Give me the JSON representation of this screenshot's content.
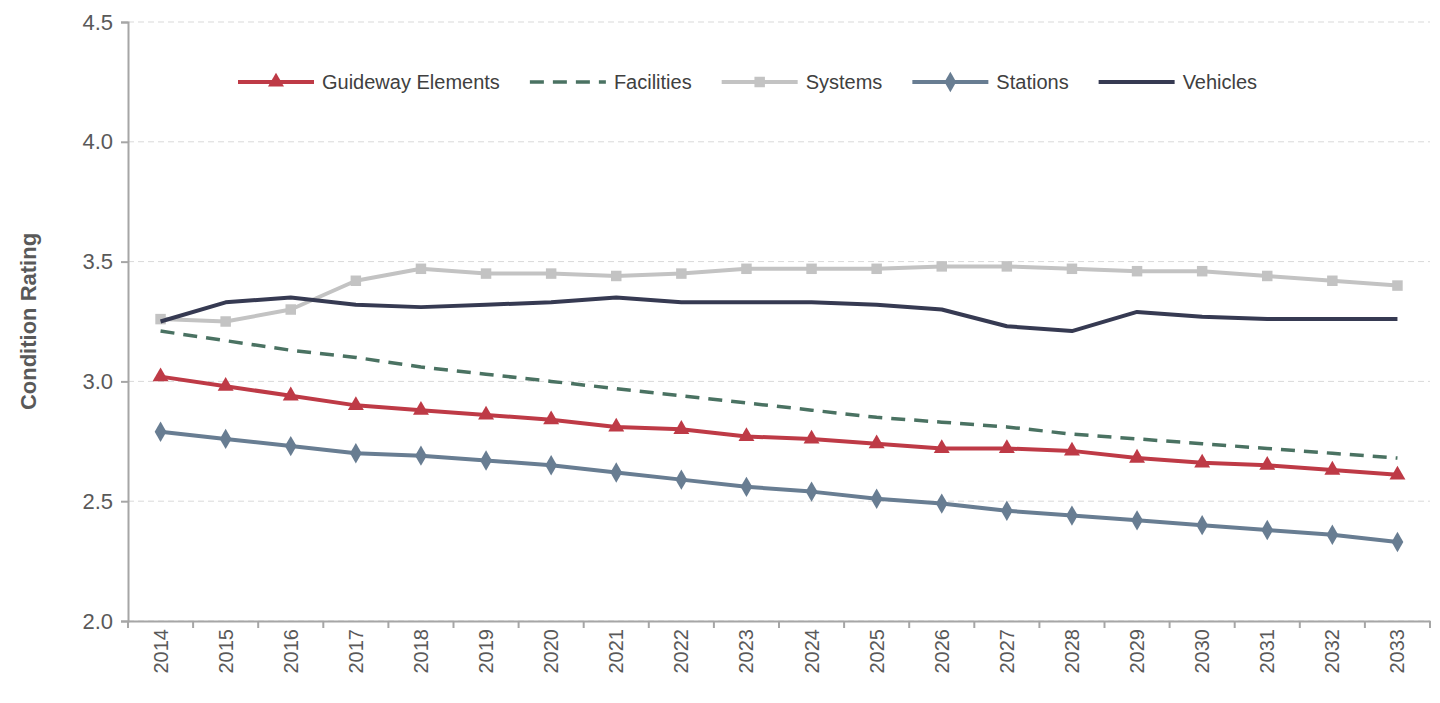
{
  "chart_data": {
    "type": "line",
    "y_label": "Condition Rating",
    "categories": [
      "2014",
      "2015",
      "2016",
      "2017",
      "2018",
      "2019",
      "2020",
      "2021",
      "2022",
      "2023",
      "2024",
      "2025",
      "2026",
      "2027",
      "2028",
      "2029",
      "2030",
      "2031",
      "2032",
      "2033"
    ],
    "ylim": [
      2.0,
      4.5
    ],
    "yticks": [
      {
        "value": 2.0,
        "label": "2.0"
      },
      2.5,
      {
        "value": 3.0,
        "label": "3.0"
      },
      3.5,
      {
        "value": 4.0,
        "label": "4.0"
      },
      4.5
    ],
    "grid": true,
    "legend": "top",
    "series": [
      {
        "name": "Guideway Elements",
        "color": "#be3a46",
        "marker": "triangle",
        "line_style": "solid",
        "values": [
          3.02,
          2.98,
          2.94,
          2.9,
          2.88,
          2.86,
          2.84,
          2.81,
          2.8,
          2.77,
          2.76,
          2.74,
          2.72,
          2.72,
          2.71,
          2.68,
          2.66,
          2.65,
          2.63,
          2.61
        ]
      },
      {
        "name": "Facilities",
        "color": "#4a7262",
        "marker": "none",
        "line_style": "dashed",
        "values": [
          3.21,
          3.17,
          3.13,
          3.1,
          3.06,
          3.03,
          3.0,
          2.97,
          2.94,
          2.91,
          2.88,
          2.85,
          2.83,
          2.81,
          2.78,
          2.76,
          2.74,
          2.72,
          2.7,
          2.68
        ]
      },
      {
        "name": "Systems",
        "color": "#c3c3c3",
        "marker": "square",
        "line_style": "solid",
        "values": [
          3.26,
          3.25,
          3.3,
          3.42,
          3.47,
          3.45,
          3.45,
          3.44,
          3.45,
          3.47,
          3.47,
          3.47,
          3.48,
          3.48,
          3.47,
          3.46,
          3.46,
          3.44,
          3.42,
          3.4
        ]
      },
      {
        "name": "Stations",
        "color": "#687d92",
        "marker": "diamond",
        "line_style": "solid",
        "values": [
          2.79,
          2.76,
          2.73,
          2.7,
          2.69,
          2.67,
          2.65,
          2.62,
          2.59,
          2.56,
          2.54,
          2.51,
          2.49,
          2.46,
          2.44,
          2.42,
          2.4,
          2.38,
          2.36,
          2.33
        ]
      },
      {
        "name": "Vehicles",
        "color": "#363a52",
        "marker": "none",
        "line_style": "solid",
        "values": [
          3.25,
          3.33,
          3.35,
          3.32,
          3.31,
          3.32,
          3.33,
          3.35,
          3.33,
          3.33,
          3.33,
          3.32,
          3.3,
          3.23,
          3.21,
          3.29,
          3.27,
          3.26,
          3.26,
          3.26
        ]
      }
    ]
  }
}
